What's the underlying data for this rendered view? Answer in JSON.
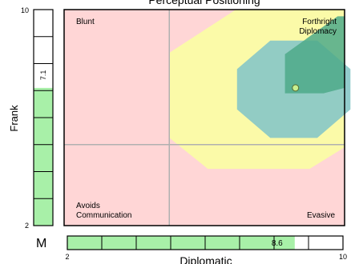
{
  "chart_data": {
    "type": "scatter",
    "title": "Perceptual Positioning",
    "xlabel": "Diplomatic",
    "ylabel": "Frank",
    "xlim": [
      2,
      10
    ],
    "ylim": [
      2,
      10
    ],
    "grid_divider": {
      "x": 5,
      "y": 5
    },
    "quadrant_labels": {
      "top_left": "Blunt",
      "top_right": "Forthright\nDiplomacy",
      "bottom_left": "Avoids\nCommunication",
      "bottom_right": "Evasive"
    },
    "point": {
      "x": 8.6,
      "y": 7.1
    },
    "frank_score": {
      "value": 7.1,
      "label": "7.1"
    },
    "diplomatic_score": {
      "value": 8.6,
      "label": "8.6"
    },
    "marker_letter": "M",
    "tick_labels": {
      "x_min": "2",
      "x_max": "10",
      "y_min": "2",
      "y_max": "10"
    },
    "colors": {
      "background": "#ffd6d6",
      "zone_yellow": "#fbfaa8",
      "zone_blue": "#86c7c7",
      "zone_green": "#4ea98a",
      "meter_fill": "#a8f0a8",
      "point": "#c8f090"
    }
  }
}
